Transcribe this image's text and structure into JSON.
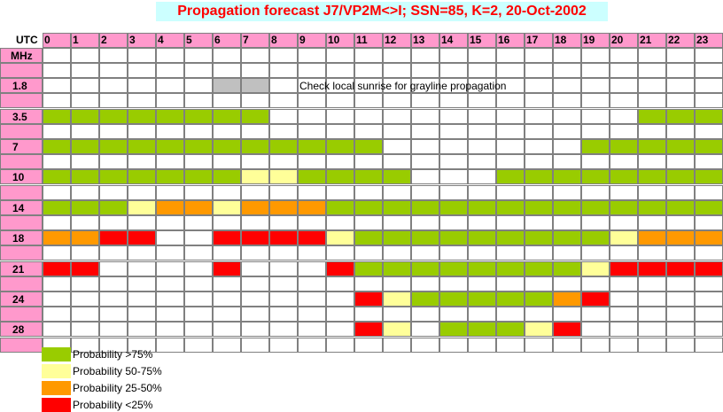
{
  "title": "Propagation forecast J7/VP2M<>I; SSN=85, K=2, 20-Oct-2002",
  "header": {
    "utc_label": "UTC",
    "mhz_label": "MHz"
  },
  "note": "Check local sunrise for grayline propagation",
  "colors": {
    "green": "#99cc00",
    "yellow": "#ffff99",
    "orange": "#ff9900",
    "red": "#ff0000",
    "gray": "#c0c0c0",
    "pink": "#ff99cc",
    "white": "#ffffff"
  },
  "chart_data": {
    "type": "heatmap",
    "title": "Propagation forecast J7/VP2M<>I; SSN=85, K=2, 20-Oct-2002",
    "x_label": "UTC",
    "y_label": "MHz",
    "hours": [
      "0",
      "1",
      "2",
      "3",
      "4",
      "5",
      "6",
      "7",
      "8",
      "9",
      "10",
      "11",
      "12",
      "13",
      "14",
      "15",
      "16",
      "17",
      "18",
      "19",
      "20",
      "21",
      "22",
      "23"
    ],
    "bands": [
      {
        "name": "1.8",
        "values": [
          "w",
          "w",
          "w",
          "w",
          "w",
          "w",
          "gray",
          "gray",
          "w",
          "w",
          "w",
          "w",
          "w",
          "w",
          "w",
          "w",
          "w",
          "w",
          "w",
          "w",
          "w",
          "w",
          "w",
          "w"
        ]
      },
      {
        "name": "3.5",
        "values": [
          "g",
          "g",
          "g",
          "g",
          "g",
          "g",
          "g",
          "g",
          "w",
          "w",
          "w",
          "w",
          "w",
          "w",
          "w",
          "w",
          "w",
          "w",
          "w",
          "w",
          "w",
          "g",
          "g",
          "g"
        ]
      },
      {
        "name": "7",
        "values": [
          "g",
          "g",
          "g",
          "g",
          "g",
          "g",
          "g",
          "g",
          "g",
          "g",
          "g",
          "g",
          "w",
          "w",
          "w",
          "w",
          "w",
          "w",
          "w",
          "g",
          "g",
          "g",
          "g",
          "g"
        ]
      },
      {
        "name": "10",
        "values": [
          "g",
          "g",
          "g",
          "g",
          "g",
          "g",
          "g",
          "y",
          "y",
          "g",
          "g",
          "g",
          "g",
          "w",
          "w",
          "w",
          "g",
          "g",
          "g",
          "g",
          "g",
          "g",
          "g",
          "g"
        ]
      },
      {
        "name": "14",
        "values": [
          "g",
          "g",
          "g",
          "y",
          "o",
          "o",
          "y",
          "o",
          "o",
          "o",
          "g",
          "g",
          "g",
          "g",
          "g",
          "g",
          "g",
          "g",
          "g",
          "g",
          "g",
          "g",
          "g",
          "g"
        ]
      },
      {
        "name": "18",
        "values": [
          "o",
          "o",
          "r",
          "r",
          "w",
          "w",
          "r",
          "r",
          "r",
          "r",
          "y",
          "g",
          "g",
          "g",
          "g",
          "g",
          "g",
          "g",
          "g",
          "g",
          "y",
          "o",
          "o",
          "o"
        ]
      },
      {
        "name": "21",
        "values": [
          "r",
          "r",
          "w",
          "w",
          "w",
          "w",
          "r",
          "w",
          "w",
          "w",
          "r",
          "g",
          "g",
          "g",
          "g",
          "g",
          "g",
          "g",
          "g",
          "y",
          "r",
          "r",
          "r",
          "r"
        ]
      },
      {
        "name": "24",
        "values": [
          "w",
          "w",
          "w",
          "w",
          "w",
          "w",
          "w",
          "w",
          "w",
          "w",
          "w",
          "r",
          "y",
          "g",
          "g",
          "g",
          "g",
          "g",
          "o",
          "r",
          "w",
          "w",
          "w",
          "w"
        ]
      },
      {
        "name": "28",
        "values": [
          "w",
          "w",
          "w",
          "w",
          "w",
          "w",
          "w",
          "w",
          "w",
          "w",
          "w",
          "r",
          "y",
          "w",
          "g",
          "g",
          "g",
          "y",
          "r",
          "w",
          "w",
          "w",
          "w",
          "w"
        ]
      }
    ],
    "legend": [
      {
        "label": "Probability >75%",
        "color": "#99cc00"
      },
      {
        "label": "Probability 50-75%",
        "color": "#ffff99"
      },
      {
        "label": "Probability 25-50%",
        "color": "#ff9900"
      },
      {
        "label": "Probability <25%",
        "color": "#ff0000"
      }
    ]
  }
}
